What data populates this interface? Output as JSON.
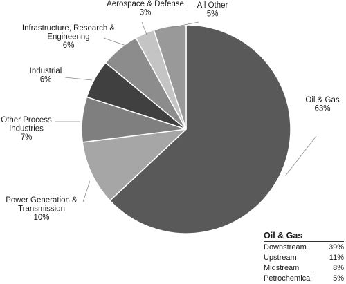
{
  "chart_data": {
    "type": "pie",
    "slices": [
      {
        "label": "Oil & Gas",
        "pct_label": "63%",
        "value": 63,
        "color": "#595959"
      },
      {
        "label": "Power Generation & Transmission",
        "lines": [
          "Power Generation &",
          "Transmission"
        ],
        "pct_label": "10%",
        "value": 10,
        "color": "#a6a6a6"
      },
      {
        "label": "Other Process Industries",
        "lines": [
          "Other Process",
          "Industries"
        ],
        "pct_label": "7%",
        "value": 7,
        "color": "#7f7f7f"
      },
      {
        "label": "Industrial",
        "lines": [
          "Industrial"
        ],
        "pct_label": "6%",
        "value": 6,
        "color": "#404040"
      },
      {
        "label": "Infrastructure, Research & Engineering",
        "lines": [
          "Infrastructure, Research &",
          "Engineering"
        ],
        "pct_label": "6%",
        "value": 6,
        "color": "#8c8c8c"
      },
      {
        "label": "Aerospace & Defense",
        "lines": [
          "Aerospace & Defense"
        ],
        "pct_label": "3%",
        "value": 3,
        "color": "#c4c4c4"
      },
      {
        "label": "All Other",
        "lines": [
          "All Other"
        ],
        "pct_label": "5%",
        "value": 5,
        "color": "#999999"
      }
    ],
    "breakdown": {
      "title": "Oil & Gas",
      "rows": [
        {
          "name": "Downstream",
          "pct": "39%"
        },
        {
          "name": "Upstream",
          "pct": "11%"
        },
        {
          "name": "Midstream",
          "pct": "8%"
        },
        {
          "name": "Petrochemical",
          "pct": "5%"
        }
      ]
    }
  }
}
